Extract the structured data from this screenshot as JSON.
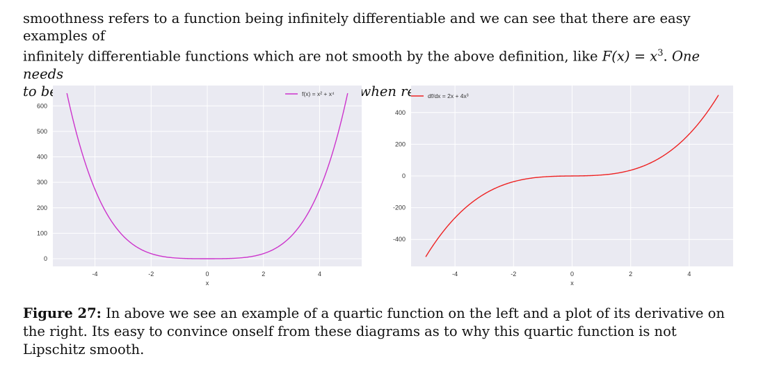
{
  "paragraph": {
    "line1": "smoothness refers to a function being infinitely differentiable and we can see that there are easy examples of",
    "line2_a": "infinitely differentiable functions which are not smooth by the above definition, like ",
    "line2_math": "F(x) = x",
    "line2_sup": "3",
    "line2_dot": ". ",
    "line2_it": "One needs",
    "line3": "to be careful about this conflict of terminologies when reading across different sources!"
  },
  "colors": {
    "plot_bg": "#eaeaf2",
    "grid": "#ffffff",
    "series_left": "#cc33cc",
    "series_right": "#ee2222"
  },
  "chart_data": [
    {
      "type": "line",
      "xlabel": "x",
      "ylabel": "",
      "xlim": [
        -5.5,
        5.5
      ],
      "ylim": [
        -30,
        680
      ],
      "xticks": [
        -4,
        -2,
        0,
        2,
        4
      ],
      "yticks": [
        0,
        100,
        200,
        300,
        400,
        500,
        600
      ],
      "xtick_labels": [
        "-4",
        "-2",
        "0",
        "2",
        "4"
      ],
      "ytick_labels": [
        "0",
        "100",
        "200",
        "300",
        "400",
        "500",
        "600"
      ],
      "grid": true,
      "legend_position": "top-right",
      "series": [
        {
          "name": "f(x) = x² + x⁴",
          "formula": "x^2 + x^4",
          "x": [
            -5.0,
            -4.5,
            -4.0,
            -3.5,
            -3.0,
            -2.5,
            -2.0,
            -1.5,
            -1.0,
            -0.5,
            0.0,
            0.5,
            1.0,
            1.5,
            2.0,
            2.5,
            3.0,
            3.5,
            4.0,
            4.5,
            5.0
          ],
          "y": [
            650,
            430.3,
            272,
            162.3,
            90,
            45.3,
            20,
            7.3,
            2,
            0.3,
            0,
            0.3,
            2,
            7.3,
            20,
            45.3,
            90,
            162.3,
            272,
            430.3,
            650
          ]
        }
      ]
    },
    {
      "type": "line",
      "xlabel": "x",
      "ylabel": "",
      "xlim": [
        -5.5,
        5.5
      ],
      "ylim": [
        -570,
        570
      ],
      "xticks": [
        -4,
        -2,
        0,
        2,
        4
      ],
      "yticks": [
        -400,
        -200,
        0,
        200,
        400
      ],
      "xtick_labels": [
        "-4",
        "-2",
        "0",
        "2",
        "4"
      ],
      "ytick_labels": [
        "-400",
        "-200",
        "0",
        "200",
        "400"
      ],
      "grid": true,
      "legend_position": "top-left",
      "series": [
        {
          "name": "df/dx = 2x + 4x³",
          "formula": "2x + 4x^3",
          "x": [
            -5.0,
            -4.5,
            -4.0,
            -3.5,
            -3.0,
            -2.5,
            -2.0,
            -1.5,
            -1.0,
            -0.5,
            0.0,
            0.5,
            1.0,
            1.5,
            2.0,
            2.5,
            3.0,
            3.5,
            4.0,
            4.5,
            5.0
          ],
          "y": [
            -510,
            -373.5,
            -264,
            -178.5,
            -114,
            -67.5,
            -36,
            -16.5,
            -6,
            -1.5,
            0,
            1.5,
            6,
            16.5,
            36,
            67.5,
            114,
            178.5,
            264,
            373.5,
            510
          ]
        }
      ]
    }
  ],
  "caption": {
    "label": "Figure 27:",
    "text": " In above we see an example of a quartic function on the left and a plot of its derivative on the right. Its easy to convince onself from these diagrams as to why this quartic function is not Lipschitz smooth."
  }
}
